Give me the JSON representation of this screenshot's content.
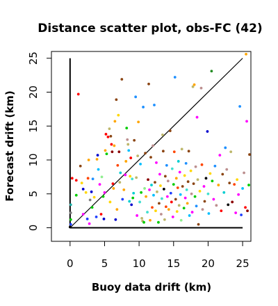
{
  "chart_data": {
    "type": "scatter",
    "title": "Distance scatter plot, obs-FC (42)",
    "xlabel": "Buoy data drift (km)",
    "ylabel": "Forecast drift (km)",
    "xlim": [
      -2.7,
      26.2
    ],
    "ylim": [
      -2.0,
      26.0
    ],
    "x_ticks": [
      0,
      5,
      10,
      15,
      20,
      25
    ],
    "y_ticks": [
      0,
      5,
      10,
      15,
      20,
      25
    ],
    "grid": false,
    "legend": "none",
    "reference_lines": [
      {
        "kind": "diagonal",
        "from": [
          0,
          0
        ],
        "to": [
          25,
          25
        ],
        "color": "#000000"
      },
      {
        "kind": "vertical",
        "from": [
          0,
          0
        ],
        "to": [
          0,
          25
        ],
        "color": "#000000"
      },
      {
        "kind": "horizontal",
        "from": [
          0,
          0
        ],
        "to": [
          25,
          0
        ],
        "color": "#000000"
      }
    ],
    "points": [
      {
        "x": 0.0,
        "y": 0.1,
        "c": "#000000"
      },
      {
        "x": 0.1,
        "y": 0.5,
        "c": "#1f3fff"
      },
      {
        "x": 0.1,
        "y": 1.2,
        "c": "#00cc00"
      },
      {
        "x": 0.1,
        "y": 2.2,
        "c": "#7f7f7f"
      },
      {
        "x": 0.1,
        "y": 3.4,
        "c": "#20b2aa"
      },
      {
        "x": 0.3,
        "y": 7.3,
        "c": "#ff0000"
      },
      {
        "x": 0.9,
        "y": 7.0,
        "c": "#ff0000"
      },
      {
        "x": 0.9,
        "y": 4.8,
        "c": "#00cc00"
      },
      {
        "x": 1.2,
        "y": 19.7,
        "c": "#ff0000"
      },
      {
        "x": 1.5,
        "y": 9.1,
        "c": "#8b4513"
      },
      {
        "x": 1.7,
        "y": 6.6,
        "c": "#ffd700"
      },
      {
        "x": 1.9,
        "y": 2.0,
        "c": "#ff00ff"
      },
      {
        "x": 1.9,
        "y": 5.7,
        "c": "#0000cd"
      },
      {
        "x": 2.3,
        "y": 5.2,
        "c": "#ffd700"
      },
      {
        "x": 2.5,
        "y": 1.3,
        "c": "#1f3fff"
      },
      {
        "x": 2.6,
        "y": 7.3,
        "c": "#ff4500"
      },
      {
        "x": 2.7,
        "y": 10.0,
        "c": "#ffa500"
      },
      {
        "x": 2.8,
        "y": 0.6,
        "c": "#ff00ff"
      },
      {
        "x": 2.9,
        "y": 4.1,
        "c": "#7f7f7f"
      },
      {
        "x": 3.1,
        "y": 5.3,
        "c": "#0000cd"
      },
      {
        "x": 3.2,
        "y": 3.0,
        "c": "#00cc00"
      },
      {
        "x": 3.3,
        "y": 7.2,
        "c": "#1e90ff"
      },
      {
        "x": 3.5,
        "y": 4.5,
        "c": "#ffd700"
      },
      {
        "x": 3.8,
        "y": 1.6,
        "c": "#1f3fff"
      },
      {
        "x": 3.9,
        "y": 10.1,
        "c": "#ffa500"
      },
      {
        "x": 4.0,
        "y": 10.7,
        "c": "#0000cd"
      },
      {
        "x": 4.1,
        "y": 8.6,
        "c": "#00bfff"
      },
      {
        "x": 4.3,
        "y": 6.4,
        "c": "#ff00ff"
      },
      {
        "x": 4.5,
        "y": 2.0,
        "c": "#ff0000"
      },
      {
        "x": 4.6,
        "y": 7.5,
        "c": "#90ee90"
      },
      {
        "x": 4.8,
        "y": 4.6,
        "c": "#00cc00"
      },
      {
        "x": 4.9,
        "y": 1.3,
        "c": "#0000cd"
      },
      {
        "x": 5.0,
        "y": 5.2,
        "c": "#ff00ff"
      },
      {
        "x": 5.1,
        "y": 11.4,
        "c": "#ffa500"
      },
      {
        "x": 5.2,
        "y": 13.8,
        "c": "#ff0000"
      },
      {
        "x": 5.3,
        "y": 10.9,
        "c": "#00cc00"
      },
      {
        "x": 5.5,
        "y": 13.4,
        "c": "#ff0000"
      },
      {
        "x": 5.7,
        "y": 14.6,
        "c": "#bdb76b"
      },
      {
        "x": 5.8,
        "y": 3.8,
        "c": "#ffd700"
      },
      {
        "x": 5.9,
        "y": 13.5,
        "c": "#8b4513"
      },
      {
        "x": 6.0,
        "y": 12.3,
        "c": "#ff0000"
      },
      {
        "x": 6.1,
        "y": 11.2,
        "c": "#8b0000"
      },
      {
        "x": 6.2,
        "y": 6.5,
        "c": "#ff0000"
      },
      {
        "x": 6.3,
        "y": 5.8,
        "c": "#ffa500"
      },
      {
        "x": 6.4,
        "y": 12.1,
        "c": "#ffa500"
      },
      {
        "x": 6.5,
        "y": 15.7,
        "c": "#ffa500"
      },
      {
        "x": 6.6,
        "y": 1.2,
        "c": "#0000cd"
      },
      {
        "x": 6.7,
        "y": 18.9,
        "c": "#8b4513"
      },
      {
        "x": 6.8,
        "y": 2.7,
        "c": "#ffa500"
      },
      {
        "x": 6.9,
        "y": 9.2,
        "c": "#ff4500"
      },
      {
        "x": 7.0,
        "y": 16.6,
        "c": "#ffd700"
      },
      {
        "x": 7.1,
        "y": 11.2,
        "c": "#8b0000"
      },
      {
        "x": 7.2,
        "y": 6.7,
        "c": "#bdb76b"
      },
      {
        "x": 7.3,
        "y": 8.1,
        "c": "#00ced1"
      },
      {
        "x": 7.5,
        "y": 21.9,
        "c": "#8b4513"
      },
      {
        "x": 7.6,
        "y": 4.2,
        "c": "#1f3fff"
      },
      {
        "x": 7.8,
        "y": 5.6,
        "c": "#ffa500"
      },
      {
        "x": 8.0,
        "y": 7.8,
        "c": "#ff00ff"
      },
      {
        "x": 8.1,
        "y": 9.8,
        "c": "#ffa500"
      },
      {
        "x": 8.2,
        "y": 14.7,
        "c": "#00cc00"
      },
      {
        "x": 8.3,
        "y": 13.0,
        "c": "#bc8f8f"
      },
      {
        "x": 8.4,
        "y": 12.3,
        "c": "#bdb76b"
      },
      {
        "x": 8.5,
        "y": 11.4,
        "c": "#00bfff"
      },
      {
        "x": 8.6,
        "y": 3.9,
        "c": "#00ced1"
      },
      {
        "x": 8.7,
        "y": 7.6,
        "c": "#ffd700"
      },
      {
        "x": 8.8,
        "y": 10.3,
        "c": "#ff0000"
      },
      {
        "x": 8.9,
        "y": 3.4,
        "c": "#0000cd"
      },
      {
        "x": 9.0,
        "y": 7.2,
        "c": "#40e0d0"
      },
      {
        "x": 9.1,
        "y": 4.4,
        "c": "#00cc00"
      },
      {
        "x": 9.2,
        "y": 5.1,
        "c": "#00ced1"
      },
      {
        "x": 9.3,
        "y": 12.9,
        "c": "#8b4513"
      },
      {
        "x": 9.5,
        "y": 19.3,
        "c": "#1e90ff"
      },
      {
        "x": 9.6,
        "y": 7.4,
        "c": "#bdb76b"
      },
      {
        "x": 9.7,
        "y": 1.8,
        "c": "#ff00ff"
      },
      {
        "x": 9.8,
        "y": 10.6,
        "c": "#bdb76b"
      },
      {
        "x": 9.9,
        "y": 15.6,
        "c": "#ffa500"
      },
      {
        "x": 10.1,
        "y": 3.8,
        "c": "#40e0d0"
      },
      {
        "x": 10.2,
        "y": 9.4,
        "c": "#00bfff"
      },
      {
        "x": 10.3,
        "y": 5.2,
        "c": "#00cc00"
      },
      {
        "x": 10.4,
        "y": 1.4,
        "c": "#bdb76b"
      },
      {
        "x": 10.5,
        "y": 1.0,
        "c": "#bdb76b"
      },
      {
        "x": 10.6,
        "y": 17.8,
        "c": "#1e90ff"
      },
      {
        "x": 10.7,
        "y": 0.8,
        "c": "#00cc00"
      },
      {
        "x": 10.8,
        "y": 5.8,
        "c": "#90ee90"
      },
      {
        "x": 10.9,
        "y": 11.0,
        "c": "#8b4513"
      },
      {
        "x": 11.0,
        "y": 4.6,
        "c": "#ffa500"
      },
      {
        "x": 11.2,
        "y": 2.3,
        "c": "#40e0d0"
      },
      {
        "x": 11.3,
        "y": 7.1,
        "c": "#8b0000"
      },
      {
        "x": 11.4,
        "y": 21.2,
        "c": "#8b4513"
      },
      {
        "x": 11.5,
        "y": 5.6,
        "c": "#ff00ff"
      },
      {
        "x": 11.6,
        "y": 1.1,
        "c": "#ffa500"
      },
      {
        "x": 11.7,
        "y": 10.4,
        "c": "#8b4513"
      },
      {
        "x": 11.8,
        "y": 6.3,
        "c": "#00ced1"
      },
      {
        "x": 11.9,
        "y": 3.0,
        "c": "#ff4500"
      },
      {
        "x": 12.0,
        "y": 12.1,
        "c": "#bc8f8f"
      },
      {
        "x": 12.1,
        "y": 4.8,
        "c": "#00bfff"
      },
      {
        "x": 12.2,
        "y": 18.1,
        "c": "#1e90ff"
      },
      {
        "x": 12.3,
        "y": 6.7,
        "c": "#8b4513"
      },
      {
        "x": 12.4,
        "y": 2.5,
        "c": "#ffd700"
      },
      {
        "x": 12.5,
        "y": 9.6,
        "c": "#ff00ff"
      },
      {
        "x": 12.6,
        "y": 5.3,
        "c": "#bdb76b"
      },
      {
        "x": 12.8,
        "y": 0.8,
        "c": "#00cc00"
      },
      {
        "x": 12.9,
        "y": 3.6,
        "c": "#8b4513"
      },
      {
        "x": 13.0,
        "y": 7.9,
        "c": "#ff00ff"
      },
      {
        "x": 13.1,
        "y": 6.2,
        "c": "#ffd700"
      },
      {
        "x": 13.2,
        "y": 2.0,
        "c": "#bc8f8f"
      },
      {
        "x": 13.3,
        "y": 4.3,
        "c": "#40e0d0"
      },
      {
        "x": 13.4,
        "y": 13.7,
        "c": "#bdb76b"
      },
      {
        "x": 13.5,
        "y": 11.3,
        "c": "#8b4513"
      },
      {
        "x": 13.6,
        "y": 5.7,
        "c": "#000000"
      },
      {
        "x": 13.7,
        "y": 1.2,
        "c": "#bdb76b"
      },
      {
        "x": 13.8,
        "y": 7.6,
        "c": "#8b4513"
      },
      {
        "x": 13.9,
        "y": 3.1,
        "c": "#ff4500"
      },
      {
        "x": 14.0,
        "y": 9.2,
        "c": "#1e90ff"
      },
      {
        "x": 14.1,
        "y": 4.6,
        "c": "#ff00ff"
      },
      {
        "x": 14.2,
        "y": 6.9,
        "c": "#bc8f8f"
      },
      {
        "x": 14.3,
        "y": 2.7,
        "c": "#ffa500"
      },
      {
        "x": 14.5,
        "y": 14.3,
        "c": "#8b4513"
      },
      {
        "x": 14.6,
        "y": 5.1,
        "c": "#1f3fff"
      },
      {
        "x": 14.7,
        "y": 3.8,
        "c": "#ff0000"
      },
      {
        "x": 14.8,
        "y": 8.7,
        "c": "#40e0d0"
      },
      {
        "x": 14.9,
        "y": 1.6,
        "c": "#ff00ff"
      },
      {
        "x": 15.0,
        "y": 6.4,
        "c": "#00cc00"
      },
      {
        "x": 15.1,
        "y": 11.2,
        "c": "#ff4500"
      },
      {
        "x": 15.2,
        "y": 22.2,
        "c": "#1e90ff"
      },
      {
        "x": 15.3,
        "y": 4.2,
        "c": "#8b4513"
      },
      {
        "x": 15.4,
        "y": 7.3,
        "c": "#ffa500"
      },
      {
        "x": 15.5,
        "y": 2.4,
        "c": "#ffd700"
      },
      {
        "x": 15.6,
        "y": 5.9,
        "c": "#ff4500"
      },
      {
        "x": 15.7,
        "y": 9.8,
        "c": "#00ced1"
      },
      {
        "x": 15.8,
        "y": 3.3,
        "c": "#bdb76b"
      },
      {
        "x": 15.9,
        "y": 8.2,
        "c": "#ff00ff"
      },
      {
        "x": 16.0,
        "y": 4.9,
        "c": "#00bfff"
      },
      {
        "x": 16.1,
        "y": 1.1,
        "c": "#90ee90"
      },
      {
        "x": 16.2,
        "y": 11.6,
        "c": "#bdb76b"
      },
      {
        "x": 16.3,
        "y": 6.1,
        "c": "#8b4513"
      },
      {
        "x": 16.5,
        "y": 2.9,
        "c": "#00cc00"
      },
      {
        "x": 16.6,
        "y": 7.7,
        "c": "#ffd700"
      },
      {
        "x": 16.7,
        "y": 4.4,
        "c": "#ff00ff"
      },
      {
        "x": 16.8,
        "y": 9.5,
        "c": "#1e90ff"
      },
      {
        "x": 16.9,
        "y": 5.6,
        "c": "#40e0d0"
      },
      {
        "x": 17.0,
        "y": 3.6,
        "c": "#ffa500"
      },
      {
        "x": 17.1,
        "y": 6.8,
        "c": "#8b4513"
      },
      {
        "x": 17.2,
        "y": 11.3,
        "c": "#8b4513"
      },
      {
        "x": 17.3,
        "y": 1.8,
        "c": "#00bfff"
      },
      {
        "x": 17.5,
        "y": 8.4,
        "c": "#ffd700"
      },
      {
        "x": 17.6,
        "y": 5.0,
        "c": "#bc8f8f"
      },
      {
        "x": 17.7,
        "y": 2.3,
        "c": "#ff00ff"
      },
      {
        "x": 17.8,
        "y": 20.8,
        "c": "#bdb76b"
      },
      {
        "x": 17.9,
        "y": 6.5,
        "c": "#8b4513"
      },
      {
        "x": 18.0,
        "y": 21.1,
        "c": "#ffa500"
      },
      {
        "x": 18.1,
        "y": 4.6,
        "c": "#00cc00"
      },
      {
        "x": 18.2,
        "y": 9.0,
        "c": "#bc8f8f"
      },
      {
        "x": 18.3,
        "y": 3.2,
        "c": "#1e90ff"
      },
      {
        "x": 18.4,
        "y": 16.3,
        "c": "#ff00ff"
      },
      {
        "x": 18.5,
        "y": 7.1,
        "c": "#bdb76b"
      },
      {
        "x": 18.6,
        "y": 0.5,
        "c": "#8b4513"
      },
      {
        "x": 18.8,
        "y": 5.4,
        "c": "#ffd700"
      },
      {
        "x": 19.0,
        "y": 20.6,
        "c": "#bc8f8f"
      },
      {
        "x": 19.1,
        "y": 9.3,
        "c": "#ff4500"
      },
      {
        "x": 19.2,
        "y": 2.7,
        "c": "#bc8f8f"
      },
      {
        "x": 19.4,
        "y": 6.1,
        "c": "#ff00ff"
      },
      {
        "x": 19.5,
        "y": 3.9,
        "c": "#8b4513"
      },
      {
        "x": 19.7,
        "y": 7.3,
        "c": "#000000"
      },
      {
        "x": 19.9,
        "y": 14.2,
        "c": "#0000cd"
      },
      {
        "x": 20.0,
        "y": 5.0,
        "c": "#40e0d0"
      },
      {
        "x": 20.1,
        "y": 2.1,
        "c": "#00bfff"
      },
      {
        "x": 20.3,
        "y": 8.0,
        "c": "#ffd700"
      },
      {
        "x": 20.5,
        "y": 23.1,
        "c": "#228b22"
      },
      {
        "x": 20.6,
        "y": 6.9,
        "c": "#00cc00"
      },
      {
        "x": 20.8,
        "y": 4.2,
        "c": "#ff00ff"
      },
      {
        "x": 21.0,
        "y": 9.1,
        "c": "#1e90ff"
      },
      {
        "x": 21.2,
        "y": 3.3,
        "c": "#bc8f8f"
      },
      {
        "x": 21.5,
        "y": 6.3,
        "c": "#ffa500"
      },
      {
        "x": 21.7,
        "y": 10.7,
        "c": "#ff00ff"
      },
      {
        "x": 21.9,
        "y": 2.5,
        "c": "#ff0000"
      },
      {
        "x": 22.1,
        "y": 7.9,
        "c": "#8b4513"
      },
      {
        "x": 22.3,
        "y": 5.2,
        "c": "#00ced1"
      },
      {
        "x": 22.5,
        "y": 11.8,
        "c": "#1e90ff"
      },
      {
        "x": 22.7,
        "y": 8.6,
        "c": "#bc8f8f"
      },
      {
        "x": 22.9,
        "y": 3.4,
        "c": "#000000"
      },
      {
        "x": 23.1,
        "y": 6.6,
        "c": "#8b4513"
      },
      {
        "x": 23.3,
        "y": 11.2,
        "c": "#bdb76b"
      },
      {
        "x": 23.5,
        "y": 3.8,
        "c": "#8b0000"
      },
      {
        "x": 23.8,
        "y": 6.4,
        "c": "#ff4500"
      },
      {
        "x": 24.0,
        "y": 2.2,
        "c": "#ff00ff"
      },
      {
        "x": 24.2,
        "y": 7.1,
        "c": "#ffd700"
      },
      {
        "x": 24.4,
        "y": 4.9,
        "c": "#ff00ff"
      },
      {
        "x": 24.6,
        "y": 17.9,
        "c": "#1e90ff"
      },
      {
        "x": 24.8,
        "y": 1.9,
        "c": "#1f3fff"
      },
      {
        "x": 25.0,
        "y": 5.8,
        "c": "#00bfff"
      },
      {
        "x": 25.2,
        "y": 8.1,
        "c": "#bc8f8f"
      },
      {
        "x": 25.4,
        "y": 3.0,
        "c": "#ff0000"
      },
      {
        "x": 25.5,
        "y": 25.6,
        "c": "#ffa500"
      },
      {
        "x": 25.6,
        "y": 15.7,
        "c": "#ff00ff"
      },
      {
        "x": 25.7,
        "y": 2.5,
        "c": "#8b0000"
      },
      {
        "x": 25.9,
        "y": 6.3,
        "c": "#00cc00"
      },
      {
        "x": 26.0,
        "y": 10.8,
        "c": "#8b4513"
      }
    ]
  }
}
